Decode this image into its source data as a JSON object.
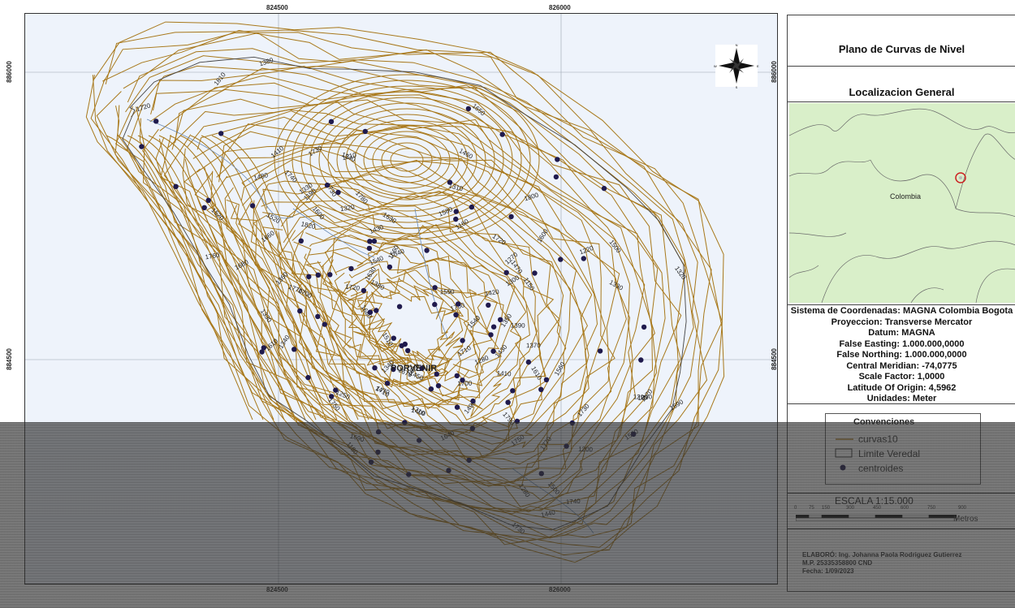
{
  "map": {
    "village_label": "PORVENIR",
    "coords_top": [
      "824500",
      "826000"
    ],
    "coords_bottom": [
      "824500",
      "826000"
    ],
    "coords_left": [
      "886000",
      "884500"
    ],
    "coords_right": [
      "886000",
      "884500"
    ],
    "compass": {
      "n": "N",
      "s": "S",
      "e": "E",
      "w": "W"
    },
    "contour_color": "#a8781a",
    "point_color": "#1f1a4d",
    "contour_labels": [
      "1730",
      "1740",
      "1720",
      "1710",
      "1700",
      "1680",
      "1660",
      "1640",
      "1690",
      "1630",
      "1600",
      "1590",
      "1470",
      "1430",
      "1400",
      "1370",
      "1390",
      "1340",
      "1330",
      "1690",
      "1700",
      "1710",
      "1720",
      "1730",
      "1740",
      "1680",
      "1670",
      "1650",
      "1630",
      "1610",
      "1590",
      "1580",
      "1560",
      "1540",
      "1520",
      "1500",
      "1800",
      "1810",
      "1820",
      "1790",
      "1780",
      "1770",
      "1760",
      "1750",
      "1730",
      "1720",
      "1710",
      "1700",
      "1610",
      "1620",
      "1600",
      "1480",
      "1460",
      "1440",
      "1420",
      "1410",
      "1390",
      "1380",
      "1360",
      "1350",
      "1340",
      "1300",
      "1310",
      "1320",
      "1330",
      "1280",
      "1270",
      "1250",
      "1240",
      "1220",
      "1210",
      "1200",
      "1190",
      "1180",
      "1170",
      "1160",
      "1150",
      "1770",
      "1280",
      "1750",
      "1730",
      "1560",
      "1540",
      "1520",
      "1510",
      "1500",
      "1490",
      "1470",
      "1450",
      "1430",
      "1410",
      "1380",
      "1340",
      "1320",
      "1290",
      "1330"
    ]
  },
  "panel": {
    "title": "Plano de Curvas de Nivel",
    "subtitle": "Localizacion General",
    "inset_label": "Colombia",
    "coord_system": [
      "Sistema de Coordenadas: MAGNA Colombia Bogota",
      "Proyeccion: Transverse Mercator",
      "Datum: MAGNA",
      "False Easting: 1.000.000,0000",
      "False Northing: 1.000.000,0000",
      "Central Meridian: -74,0775",
      "Scale Factor: 1,0000",
      "Latitude Of Origin: 4,5962",
      "Unidades: Meter"
    ],
    "legend": {
      "title": "Convenciones",
      "items": [
        {
          "label": "curvas10",
          "symbol": "contour-line"
        },
        {
          "label": "Limite Veredal",
          "symbol": "boundary-box"
        },
        {
          "label": "centroides",
          "symbol": "point"
        }
      ]
    },
    "scale": {
      "title": "ESCALA  1:15.000",
      "ticks": [
        "0",
        "75",
        "150",
        "300",
        "450",
        "600",
        "750",
        "900"
      ],
      "unit": "Metros"
    },
    "credits": [
      "ELABORÓ: Ing. Johanna Paola Rodriguez Gutierrez",
      "M.P. 25335358800 CND",
      "Fecha: 1/09/2023"
    ]
  }
}
